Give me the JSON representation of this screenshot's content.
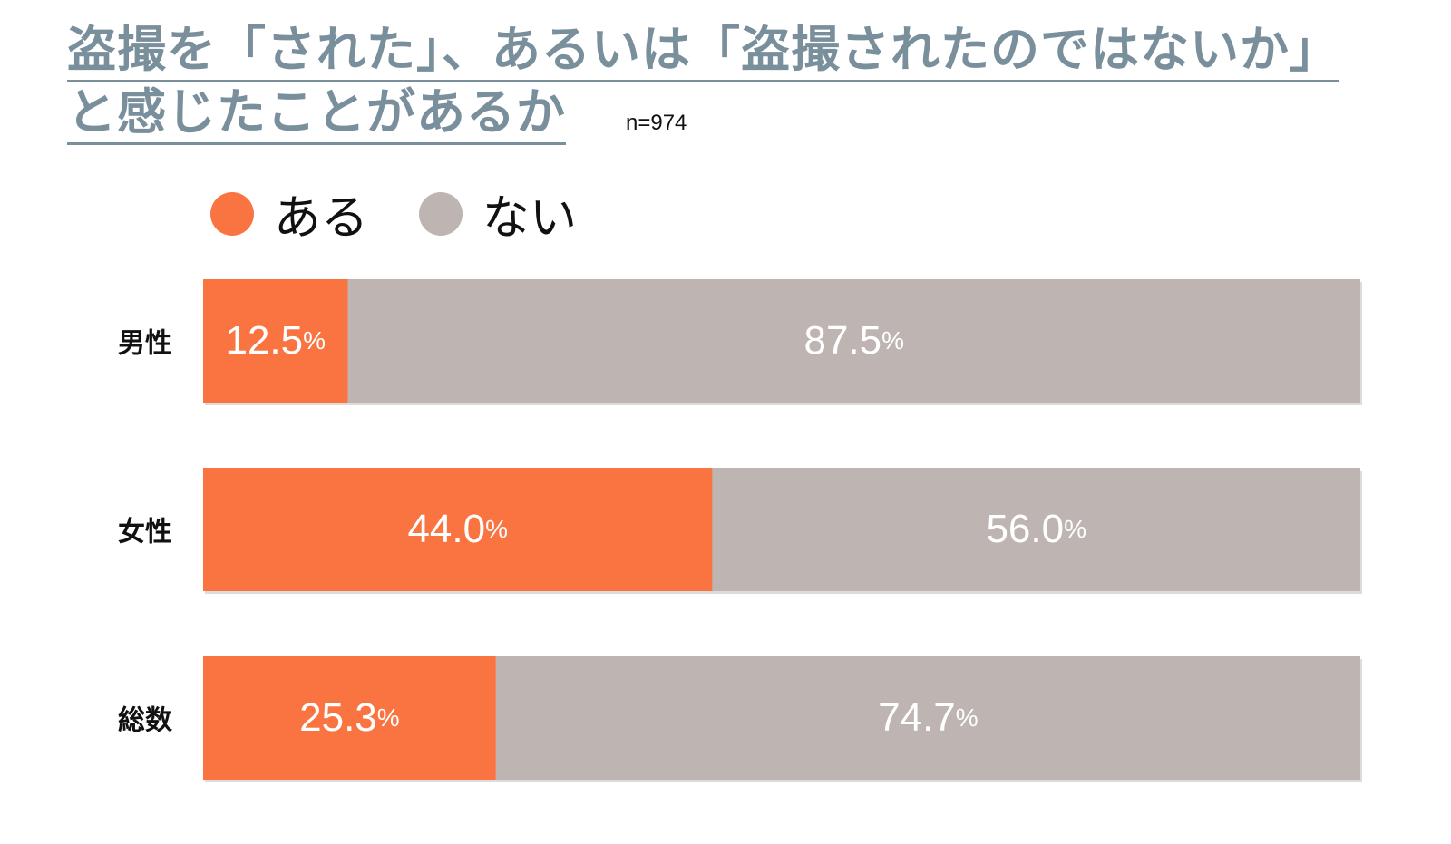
{
  "title": {
    "line1": "盗撮を「された」、あるいは「盗撮されたのではないか」",
    "line2": "と感じたことがあるか"
  },
  "sample_size": "n=974",
  "colors": {
    "aru": "#f97441",
    "nai": "#beb4b2",
    "title": "#7a8f9c",
    "label": "#111111",
    "value_text": "#ffffff"
  },
  "chart_data": {
    "type": "bar",
    "orientation": "horizontal",
    "stacked": true,
    "percent_stacked": true,
    "categories": [
      "男性",
      "女性",
      "総数"
    ],
    "series": [
      {
        "name": "ある",
        "values": [
          12.5,
          44.0,
          25.3
        ],
        "color": "#f97441"
      },
      {
        "name": "ない",
        "values": [
          87.5,
          56.0,
          74.7
        ],
        "color": "#beb4b2"
      }
    ],
    "unit": "%",
    "xlim": [
      0,
      100
    ],
    "legend_position": "top-left",
    "grid": false
  }
}
